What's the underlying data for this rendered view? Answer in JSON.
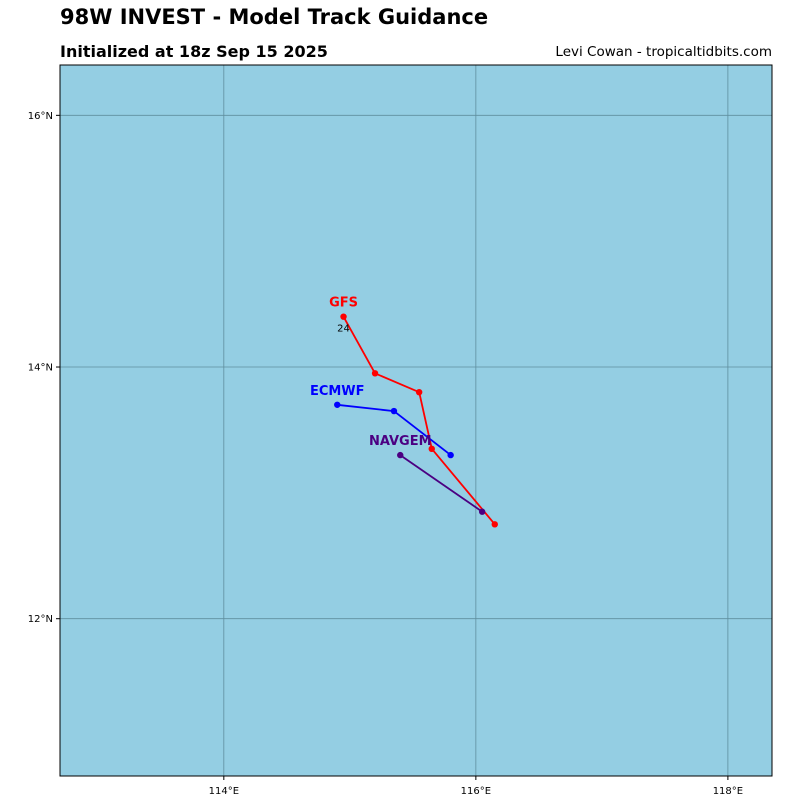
{
  "header": {
    "title": "98W INVEST - Model Track Guidance",
    "subtitle": "Initialized at 18z Sep 15 2025",
    "credit": "Levi Cowan - tropicaltidbits.com"
  },
  "colors": {
    "ocean": "#94cee3",
    "grid": "#5f8e9e"
  },
  "chart_data": {
    "type": "line",
    "xlim": [
      112.7,
      118.35
    ],
    "ylim": [
      10.75,
      16.4
    ],
    "xticks": [
      {
        "value": 114,
        "label": "114°E"
      },
      {
        "value": 116,
        "label": "116°E"
      },
      {
        "value": 118,
        "label": "118°E"
      }
    ],
    "yticks": [
      {
        "value": 12,
        "label": "12°N"
      },
      {
        "value": 14,
        "label": "14°N"
      },
      {
        "value": 16,
        "label": "16°N"
      }
    ],
    "grid": true,
    "series": [
      {
        "name": "GFS",
        "color": "#ff0000",
        "points": [
          [
            116.15,
            12.75
          ],
          [
            115.65,
            13.35
          ],
          [
            115.55,
            13.8
          ],
          [
            115.2,
            13.95
          ],
          [
            114.95,
            14.4
          ]
        ],
        "point_labels": [
          {
            "index": 4,
            "text": "24"
          }
        ]
      },
      {
        "name": "ECMWF",
        "color": "#0000ff",
        "points": [
          [
            115.8,
            13.3
          ],
          [
            115.35,
            13.65
          ],
          [
            114.9,
            13.7
          ]
        ],
        "point_labels": []
      },
      {
        "name": "NAVGEM",
        "color": "#4b0082",
        "points": [
          [
            116.05,
            12.85
          ],
          [
            115.4,
            13.3
          ]
        ],
        "point_labels": []
      }
    ]
  }
}
